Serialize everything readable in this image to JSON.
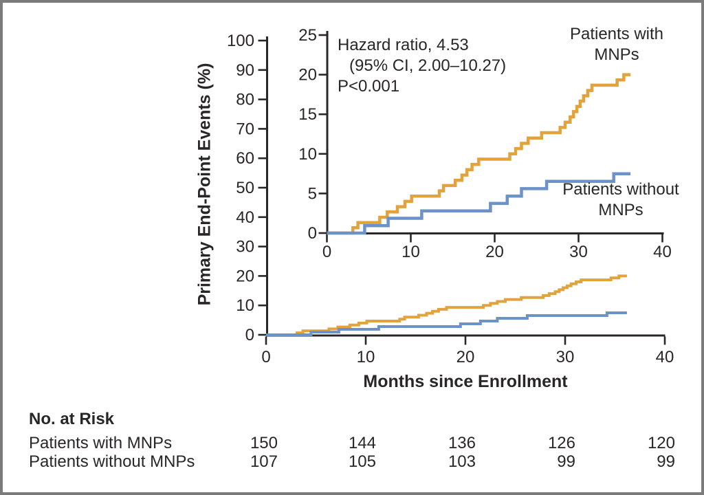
{
  "chart_data": {
    "type": "line",
    "subtype": "kaplan-meier-cumulative-incidence-step",
    "xlabel": "Months since Enrollment",
    "ylabel": "Primary End-Point Events (%)",
    "xlim": [
      0,
      40
    ],
    "x_ticks": [
      0,
      10,
      20,
      30,
      40
    ],
    "main_panel": {
      "ylim": [
        0,
        100
      ],
      "y_ticks": [
        0,
        10,
        20,
        30,
        40,
        50,
        60,
        70,
        80,
        90,
        100
      ],
      "grid": false
    },
    "inset_panel": {
      "ylim": [
        0,
        25
      ],
      "y_ticks": [
        0,
        5,
        10,
        15,
        20,
        25
      ],
      "grid": false
    },
    "annotation": {
      "line1": "Hazard ratio, 4.53",
      "line2": "(95% CI, 2.00–10.27)",
      "line3": "P<0.001"
    },
    "series": [
      {
        "name": "Patients with MNPs",
        "label_lines": [
          "Patients with",
          "MNPs"
        ],
        "color": "#E3A33C",
        "points": [
          [
            0,
            0
          ],
          [
            3.1,
            0.67
          ],
          [
            3.7,
            1.33
          ],
          [
            6.3,
            2.0
          ],
          [
            7.2,
            2.67
          ],
          [
            8.4,
            3.33
          ],
          [
            9.3,
            4.0
          ],
          [
            10.1,
            4.67
          ],
          [
            13.4,
            5.33
          ],
          [
            13.9,
            6.0
          ],
          [
            15.3,
            6.67
          ],
          [
            16.1,
            7.33
          ],
          [
            16.7,
            8.0
          ],
          [
            17.3,
            8.67
          ],
          [
            18.1,
            9.33
          ],
          [
            21.8,
            10.0
          ],
          [
            22.5,
            10.67
          ],
          [
            23.2,
            11.33
          ],
          [
            24.0,
            12.0
          ],
          [
            25.6,
            12.67
          ],
          [
            27.8,
            13.33
          ],
          [
            28.4,
            14.0
          ],
          [
            29.0,
            14.67
          ],
          [
            29.4,
            15.33
          ],
          [
            29.8,
            16.0
          ],
          [
            30.2,
            16.67
          ],
          [
            30.6,
            17.33
          ],
          [
            31.1,
            18.0
          ],
          [
            31.6,
            18.67
          ],
          [
            34.6,
            19.33
          ],
          [
            35.4,
            20.0
          ],
          [
            36.2,
            20.0
          ]
        ]
      },
      {
        "name": "Patients without MNPs",
        "label_lines": [
          "Patients without",
          "MNPs"
        ],
        "color": "#6B92C9",
        "points": [
          [
            0,
            0
          ],
          [
            4.5,
            0.93
          ],
          [
            7.3,
            1.87
          ],
          [
            11.3,
            2.8
          ],
          [
            19.5,
            3.74
          ],
          [
            21.5,
            4.67
          ],
          [
            23.2,
            5.61
          ],
          [
            26.2,
            6.54
          ],
          [
            34.2,
            7.48
          ],
          [
            36.2,
            7.48
          ]
        ]
      }
    ]
  },
  "risk_table": {
    "title": "No. at Risk",
    "columns": [
      0,
      10,
      20,
      30,
      40
    ],
    "rows": [
      {
        "label": "Patients with MNPs",
        "values": [
          "150",
          "144",
          "136",
          "126",
          "120"
        ]
      },
      {
        "label": "Patients without MNPs",
        "values": [
          "107",
          "105",
          "103",
          "99",
          "99"
        ]
      }
    ]
  },
  "colors": {
    "axis": "#2A2627",
    "text": "#2A2627",
    "with_mnps": "#E3A33C",
    "without_mnps": "#6B92C9",
    "border": "#7B7B7B",
    "background": "#FFFFFF"
  }
}
